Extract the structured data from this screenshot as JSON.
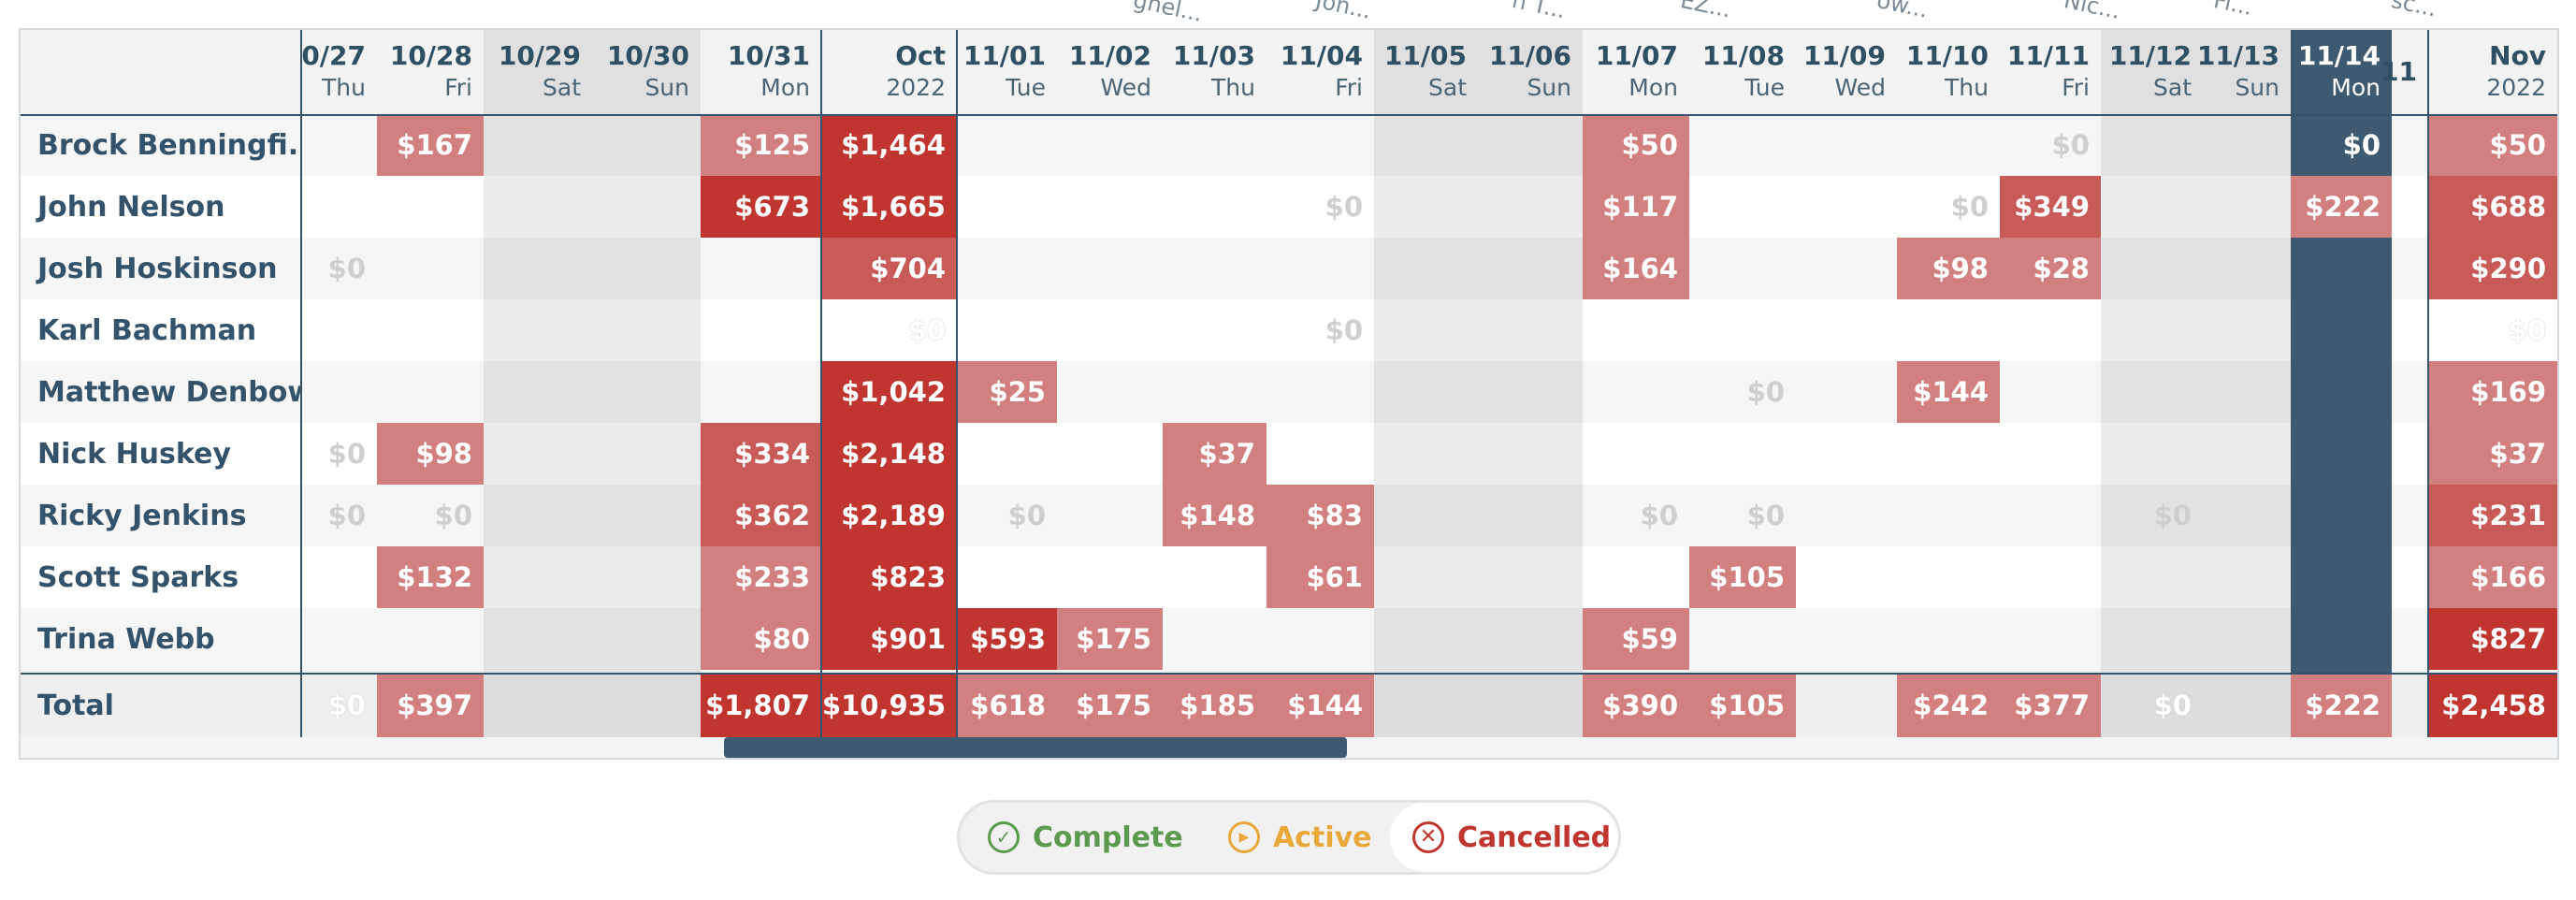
{
  "top_clipped_labels": [
    "ghel...",
    "Joh...",
    "n T...",
    "EZ...",
    "ow...",
    "Nic...",
    "Fi...",
    "sc..."
  ],
  "columns": [
    {
      "d1": "0/27",
      "d2": "Thu"
    },
    {
      "d1": "10/28",
      "d2": "Fri"
    },
    {
      "d1": "10/29",
      "d2": "Sat"
    },
    {
      "d1": "10/30",
      "d2": "Sun"
    },
    {
      "d1": "10/31",
      "d2": "Mon"
    },
    {
      "d1": "Oct",
      "d2": "2022"
    },
    {
      "d1": "11/01",
      "d2": "Tue"
    },
    {
      "d1": "11/02",
      "d2": "Wed"
    },
    {
      "d1": "11/03",
      "d2": "Thu"
    },
    {
      "d1": "11/04",
      "d2": "Fri"
    },
    {
      "d1": "11/05",
      "d2": "Sat"
    },
    {
      "d1": "11/06",
      "d2": "Sun"
    },
    {
      "d1": "11/07",
      "d2": "Mon"
    },
    {
      "d1": "11/08",
      "d2": "Tue"
    },
    {
      "d1": "11/09",
      "d2": "Wed"
    },
    {
      "d1": "11/10",
      "d2": "Thu"
    },
    {
      "d1": "11/11",
      "d2": "Fri"
    },
    {
      "d1": "11/12",
      "d2": "Sat"
    },
    {
      "d1": "11/13",
      "d2": "Sun"
    },
    {
      "d1": "11/14",
      "d2": "Mon"
    },
    {
      "d1": "11",
      "d2": ""
    },
    {
      "d1": "Nov",
      "d2": "2022"
    }
  ],
  "rows": [
    {
      "name": "Brock Benningfi...",
      "cells": [
        null,
        "$167",
        null,
        null,
        "$125",
        "$1,464",
        null,
        null,
        null,
        null,
        null,
        null,
        "$50",
        null,
        null,
        null,
        "$0",
        null,
        null,
        "$0",
        null,
        "$50"
      ]
    },
    {
      "name": "John Nelson",
      "cells": [
        null,
        null,
        null,
        null,
        "$673",
        "$1,665",
        null,
        null,
        null,
        "$0",
        null,
        null,
        "$117",
        null,
        null,
        "$0",
        "$349",
        null,
        null,
        "$222",
        null,
        "$688"
      ]
    },
    {
      "name": "Josh Hoskinson",
      "cells": [
        "$0",
        null,
        null,
        null,
        null,
        "$704",
        null,
        null,
        null,
        null,
        null,
        null,
        "$164",
        null,
        null,
        "$98",
        "$28",
        null,
        null,
        null,
        null,
        "$290"
      ]
    },
    {
      "name": "Karl Bachman",
      "cells": [
        null,
        null,
        null,
        null,
        null,
        "$0",
        null,
        null,
        null,
        "$0",
        null,
        null,
        null,
        null,
        null,
        null,
        null,
        null,
        null,
        null,
        null,
        "$0"
      ]
    },
    {
      "name": "Matthew Denbow",
      "cells": [
        null,
        null,
        null,
        null,
        null,
        "$1,042",
        "$25",
        null,
        null,
        null,
        null,
        null,
        null,
        "$0",
        null,
        "$144",
        null,
        null,
        null,
        null,
        null,
        "$169"
      ]
    },
    {
      "name": "Nick Huskey",
      "cells": [
        "$0",
        "$98",
        null,
        null,
        "$334",
        "$2,148",
        null,
        null,
        "$37",
        null,
        null,
        null,
        null,
        null,
        null,
        null,
        null,
        null,
        null,
        null,
        null,
        "$37"
      ]
    },
    {
      "name": "Ricky Jenkins",
      "cells": [
        "$0",
        "$0",
        null,
        null,
        "$362",
        "$2,189",
        "$0",
        null,
        "$148",
        "$83",
        null,
        null,
        "$0",
        "$0",
        null,
        null,
        null,
        "$0",
        null,
        null,
        null,
        "$231"
      ]
    },
    {
      "name": "Scott Sparks",
      "cells": [
        null,
        "$132",
        null,
        null,
        "$233",
        "$823",
        null,
        null,
        null,
        "$61",
        null,
        null,
        null,
        "$105",
        null,
        null,
        null,
        null,
        null,
        null,
        null,
        "$166"
      ]
    },
    {
      "name": "Trina Webb",
      "cells": [
        null,
        null,
        null,
        null,
        "$80",
        "$901",
        "$593",
        "$175",
        null,
        null,
        null,
        null,
        "$59",
        null,
        null,
        null,
        null,
        null,
        null,
        null,
        null,
        "$827"
      ]
    }
  ],
  "total": {
    "name": "Total",
    "cells": [
      "$0",
      "$397",
      null,
      null,
      "$1,807",
      "$10,935",
      "$618",
      "$175",
      "$185",
      "$144",
      null,
      null,
      "$390",
      "$105",
      null,
      "$242",
      "$377",
      "$0",
      null,
      "$222",
      null,
      "$2,458"
    ]
  },
  "legend": {
    "complete": "Complete",
    "active": "Active",
    "cancelled": "Cancelled"
  },
  "colors": {
    "dark_red": "#c0352f",
    "light_red": "#d17f7f",
    "mid_red": "#c85a58",
    "navy": "#3d5a70",
    "weekend": "#e8e8e8"
  }
}
